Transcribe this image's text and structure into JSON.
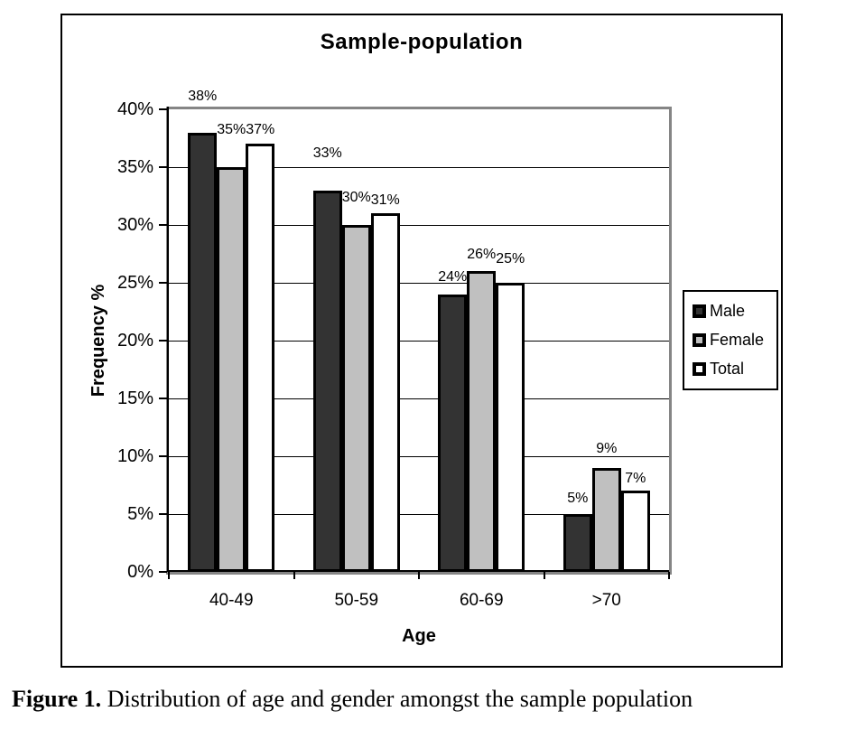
{
  "figure": {
    "caption_label": "Figure 1.",
    "caption_text": " Distribution of age and gender amongst the sample population"
  },
  "chart_data": {
    "type": "bar",
    "title": "Sample-population",
    "xlabel": "Age",
    "ylabel": "Frequency %",
    "categories": [
      "40-49",
      "50-59",
      "60-69",
      ">70"
    ],
    "series": [
      {
        "name": "Male",
        "values": [
          38,
          33,
          24,
          5
        ],
        "fill": "#333333"
      },
      {
        "name": "Female",
        "values": [
          35,
          30,
          26,
          9
        ],
        "fill": "#c0c0c0"
      },
      {
        "name": "Total",
        "values": [
          37,
          31,
          25,
          7
        ],
        "fill": "#ffffff"
      }
    ],
    "ylim": [
      0,
      40
    ],
    "ytick_step": 5,
    "ytick_suffix": "%",
    "data_label_suffix": "%",
    "grid": true,
    "legend_position": "right",
    "colors": {
      "bar_border": "#000000",
      "plot_border": "#858585",
      "gridline": "#000000",
      "text": "#000000"
    },
    "label_gaps": [
      [
        32,
        33,
        7
      ],
      [
        33,
        22,
        6
      ],
      [
        11,
        10,
        18
      ],
      [
        9,
        13,
        5
      ]
    ]
  }
}
